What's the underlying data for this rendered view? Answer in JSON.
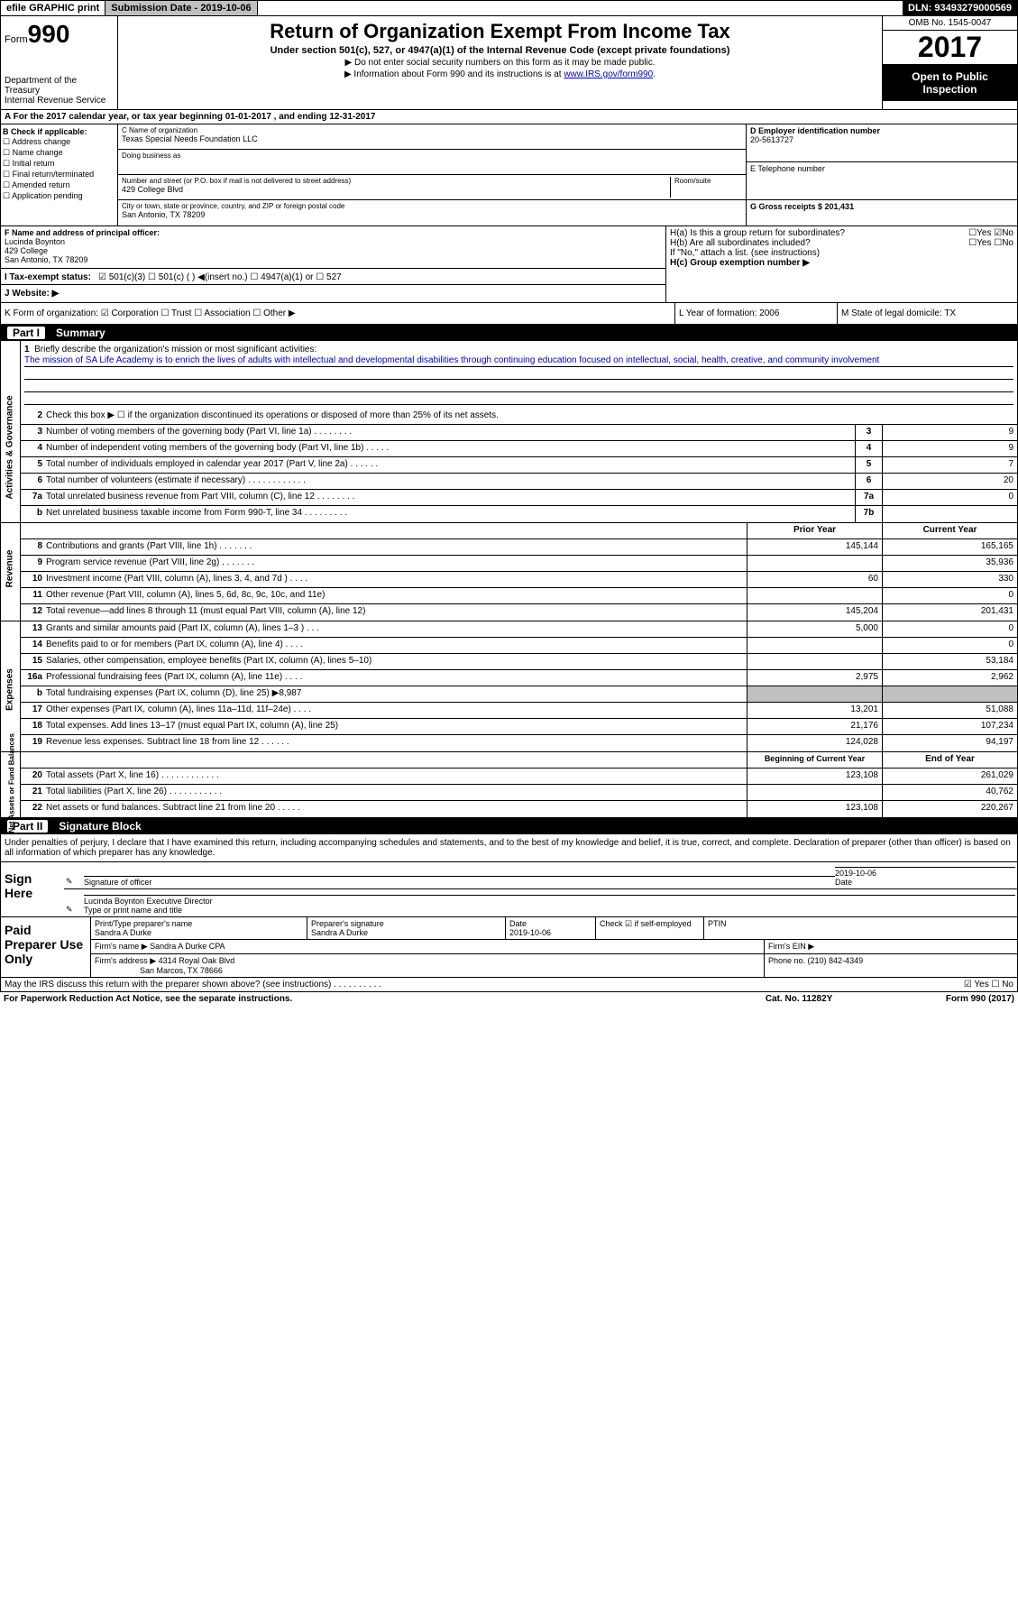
{
  "topbar": {
    "efile": "efile GRAPHIC print",
    "submission": "Submission Date - 2019-10-06",
    "dln": "DLN: 93493279000569"
  },
  "header": {
    "form_label": "Form",
    "form_num": "990",
    "dept": "Department of the Treasury\nInternal Revenue Service",
    "title": "Return of Organization Exempt From Income Tax",
    "subtitle": "Under section 501(c), 527, or 4947(a)(1) of the Internal Revenue Code (except private foundations)",
    "note1": "▶ Do not enter social security numbers on this form as it may be made public.",
    "note2": "▶ Information about Form 990 and its instructions is at ",
    "note2_link": "www.IRS.gov/form990",
    "omb": "OMB No. 1545-0047",
    "year": "2017",
    "open": "Open to Public Inspection"
  },
  "section_a": "A For the 2017 calendar year, or tax year beginning 01-01-2017   , and ending 12-31-2017",
  "col_b": {
    "hdr": "B Check if applicable:",
    "items": [
      "☐ Address change",
      "☐ Name change",
      "☐ Initial return",
      "☐ Final return/terminated",
      "☐ Amended return",
      "☐ Application pending"
    ]
  },
  "col_c": {
    "name_label": "C Name of organization",
    "name": "Texas Special Needs Foundation LLC",
    "dba_label": "Doing business as",
    "addr_label": "Number and street (or P.O. box if mail is not delivered to street address)",
    "room_label": "Room/suite",
    "addr": "429 College Blvd",
    "city_label": "City or town, state or province, country, and ZIP or foreign postal code",
    "city": "San Antonio, TX  78209"
  },
  "col_d": {
    "label": "D Employer identification number",
    "value": "20-5613727"
  },
  "col_e": {
    "label": "E Telephone number"
  },
  "col_g": {
    "label": "G Gross receipts $ 201,431"
  },
  "col_f": {
    "label": "F  Name and address of principal officer:",
    "name": "Lucinda Boynton",
    "addr1": "429 College",
    "addr2": "San Antonio, TX  78209"
  },
  "col_h": {
    "ha": "H(a)  Is this a group return for subordinates?",
    "ha_ans": "☐Yes ☑No",
    "hb": "H(b)  Are all subordinates included?",
    "hb_ans": "☐Yes ☐No",
    "hb_note": "If \"No,\" attach a list. (see instructions)",
    "hc": "H(c)  Group exemption number ▶"
  },
  "tax_status": {
    "label": "I   Tax-exempt status:",
    "opts": "☑ 501(c)(3)   ☐  501(c) (  ) ◀(insert no.)    ☐ 4947(a)(1) or  ☐ 527"
  },
  "website": "J   Website: ▶",
  "klm": {
    "k": "K Form of organization:  ☑ Corporation ☐ Trust ☐ Association ☐ Other ▶",
    "l": "L Year of formation: 2006",
    "m": "M State of legal domicile: TX"
  },
  "part1": {
    "num": "Part I",
    "title": "Summary"
  },
  "mission": {
    "num": "1",
    "label": "Briefly describe the organization's mission or most significant activities:",
    "text": "The mission of SA Life Academy is to enrich the lives of adults with intellectual and developmental disabilities through continuing education focused on intellectual, social, health, creative, and community involvement"
  },
  "lines_gov": [
    {
      "n": "2",
      "t": "Check this box ▶ ☐ if the organization discontinued its operations or disposed of more than 25% of its net assets.",
      "b": "",
      "v": ""
    },
    {
      "n": "3",
      "t": "Number of voting members of the governing body (Part VI, line 1a)  .    .    .    .    .    .    .    .",
      "b": "3",
      "v": "9"
    },
    {
      "n": "4",
      "t": "Number of independent voting members of the governing body (Part VI, line 1b)  .    .    .    .    .",
      "b": "4",
      "v": "9"
    },
    {
      "n": "5",
      "t": "Total number of individuals employed in calendar year 2017 (Part V, line 2a)  .    .    .    .    .    .",
      "b": "5",
      "v": "7"
    },
    {
      "n": "6",
      "t": "Total number of volunteers (estimate if necessary)    .    .    .    .    .    .    .    .    .    .    .    .",
      "b": "6",
      "v": "20"
    },
    {
      "n": "7a",
      "t": "Total unrelated business revenue from Part VIII, column (C), line 12  .    .    .    .    .    .    .    .",
      "b": "7a",
      "v": "0"
    },
    {
      "n": "b",
      "t": "Net unrelated business taxable income from Form 990-T, line 34   .    .    .    .    .    .    .    .    .",
      "b": "7b",
      "v": ""
    }
  ],
  "col_hdrs": {
    "prior": "Prior Year",
    "current": "Current Year"
  },
  "lines_rev": [
    {
      "n": "8",
      "t": "Contributions and grants (Part VIII, line 1h)  .    .    .    .    .    .    .",
      "p": "145,144",
      "c": "165,165"
    },
    {
      "n": "9",
      "t": "Program service revenue (Part VIII, line 2g)  .    .    .    .    .    .    .",
      "p": "",
      "c": "35,936"
    },
    {
      "n": "10",
      "t": "Investment income (Part VIII, column (A), lines 3, 4, and 7d )  .    .    .    .",
      "p": "60",
      "c": "330"
    },
    {
      "n": "11",
      "t": "Other revenue (Part VIII, column (A), lines 5, 6d, 8c, 9c, 10c, and 11e)",
      "p": "",
      "c": "0"
    },
    {
      "n": "12",
      "t": "Total revenue—add lines 8 through 11 (must equal Part VIII, column (A), line 12)",
      "p": "145,204",
      "c": "201,431"
    }
  ],
  "lines_exp": [
    {
      "n": "13",
      "t": "Grants and similar amounts paid (Part IX, column (A), lines 1–3 )  .    .    .",
      "p": "5,000",
      "c": "0"
    },
    {
      "n": "14",
      "t": "Benefits paid to or for members (Part IX, column (A), line 4)  .    .    .    .",
      "p": "",
      "c": "0"
    },
    {
      "n": "15",
      "t": "Salaries, other compensation, employee benefits (Part IX, column (A), lines 5–10)",
      "p": "",
      "c": "53,184"
    },
    {
      "n": "16a",
      "t": "Professional fundraising fees (Part IX, column (A), line 11e)  .    .    .    .",
      "p": "2,975",
      "c": "2,962"
    },
    {
      "n": "b",
      "t": "Total fundraising expenses (Part IX, column (D), line 25) ▶8,987",
      "p": "GRAY",
      "c": "GRAY"
    },
    {
      "n": "17",
      "t": "Other expenses (Part IX, column (A), lines 11a–11d, 11f–24e)  .    .    .    .",
      "p": "13,201",
      "c": "51,088"
    },
    {
      "n": "18",
      "t": "Total expenses. Add lines 13–17 (must equal Part IX, column (A), line 25)",
      "p": "21,176",
      "c": "107,234"
    },
    {
      "n": "19",
      "t": "Revenue less expenses. Subtract line 18 from line 12   .    .    .    .    .    .",
      "p": "124,028",
      "c": "94,197"
    }
  ],
  "col_hdrs2": {
    "begin": "Beginning of Current Year",
    "end": "End of Year"
  },
  "lines_net": [
    {
      "n": "20",
      "t": "Total assets (Part X, line 16)  .    .    .    .    .    .    .    .    .    .    .    .",
      "p": "123,108",
      "c": "261,029"
    },
    {
      "n": "21",
      "t": "Total liabilities (Part X, line 26)    .    .    .    .    .    .    .    .    .    .    .",
      "p": "",
      "c": "40,762"
    },
    {
      "n": "22",
      "t": "Net assets or fund balances. Subtract line 21 from line 20  .    .    .    .    .",
      "p": "123,108",
      "c": "220,267"
    }
  ],
  "vtabs": {
    "gov": "Activities & Governance",
    "rev": "Revenue",
    "exp": "Expenses",
    "net": "Net Assets or Fund Balances"
  },
  "part2": {
    "num": "Part II",
    "title": "Signature Block"
  },
  "sig_intro": "Under penalties of perjury, I declare that I have examined this return, including accompanying schedules and statements, and to the best of my knowledge and belief, it is true, correct, and complete. Declaration of preparer (other than officer) is based on all information of which preparer has any knowledge.",
  "sign": {
    "label": "Sign Here",
    "sig_label": "Signature of officer",
    "date_label": "Date",
    "date": "2019-10-06",
    "name": "Lucinda Boynton  Executive Director",
    "name_label": "Type or print name and title"
  },
  "paid": {
    "label": "Paid Preparer Use Only",
    "r1": {
      "c1_label": "Print/Type preparer's name",
      "c1": "Sandra A Durke",
      "c2_label": "Preparer's signature",
      "c2": "Sandra A Durke",
      "c3_label": "Date",
      "c3": "2019-10-06",
      "c4": "Check ☑ if self-employed",
      "c5_label": "PTIN"
    },
    "r2": {
      "firm_label": "Firm's name   ▶",
      "firm": "Sandra A Durke CPA",
      "ein_label": "Firm's EIN ▶"
    },
    "r3": {
      "addr_label": "Firm's address ▶",
      "addr1": "4314 Royal Oak Blvd",
      "addr2": "San Marcos, TX  78666",
      "phone_label": "Phone no. (210) 842-4349"
    }
  },
  "footer": {
    "q": "May the IRS discuss this return with the preparer shown above? (see instructions)    .    .    .    .    .    .    .    .    .    .",
    "ans": "☑ Yes  ☐ No",
    "paperwork": "For Paperwork Reduction Act Notice, see the separate instructions.",
    "cat": "Cat. No. 11282Y",
    "form": "Form 990 (2017)"
  }
}
